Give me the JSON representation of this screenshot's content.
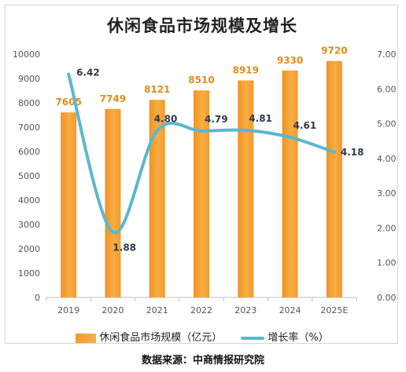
{
  "chart_data": {
    "type": "bar",
    "title": "休闲食品市场规模及增长",
    "categories": [
      "2019",
      "2020",
      "2021",
      "2022",
      "2023",
      "2024",
      "2025E"
    ],
    "series": [
      {
        "name": "休闲食品市场规模（亿元）",
        "type": "bar",
        "axis": "left",
        "values": [
          7605,
          7749,
          8121,
          8510,
          8919,
          9330,
          9720
        ],
        "labels": [
          "7605",
          "7749",
          "8121",
          "8510",
          "8919",
          "9330",
          "9720"
        ]
      },
      {
        "name": "增长率（%）",
        "type": "line",
        "axis": "right",
        "values": [
          6.42,
          1.88,
          4.8,
          4.79,
          4.81,
          4.61,
          4.18
        ],
        "labels": [
          "6.42",
          "1.88",
          "4.80",
          "4.79",
          "4.81",
          "4.61",
          "4.18"
        ]
      }
    ],
    "y_left": {
      "min": 0,
      "max": 10000,
      "ticks": [
        "0",
        "1000",
        "2000",
        "3000",
        "4000",
        "5000",
        "6000",
        "7000",
        "8000",
        "9000",
        "10000"
      ]
    },
    "y_right": {
      "min": 0,
      "max": 7,
      "ticks": [
        "0.00",
        "1.00",
        "2.00",
        "3.00",
        "4.00",
        "5.00",
        "6.00",
        "7.00"
      ]
    },
    "grid": false,
    "legend_position": "bottom",
    "colors": {
      "bar": "#f39a2b",
      "bar_light": "#f7b24c",
      "line": "#5ab8cf",
      "bar_label": "#e08c1e",
      "rate_label": "#2f3a4a"
    }
  },
  "source": "数据来源：中商情报研究院"
}
